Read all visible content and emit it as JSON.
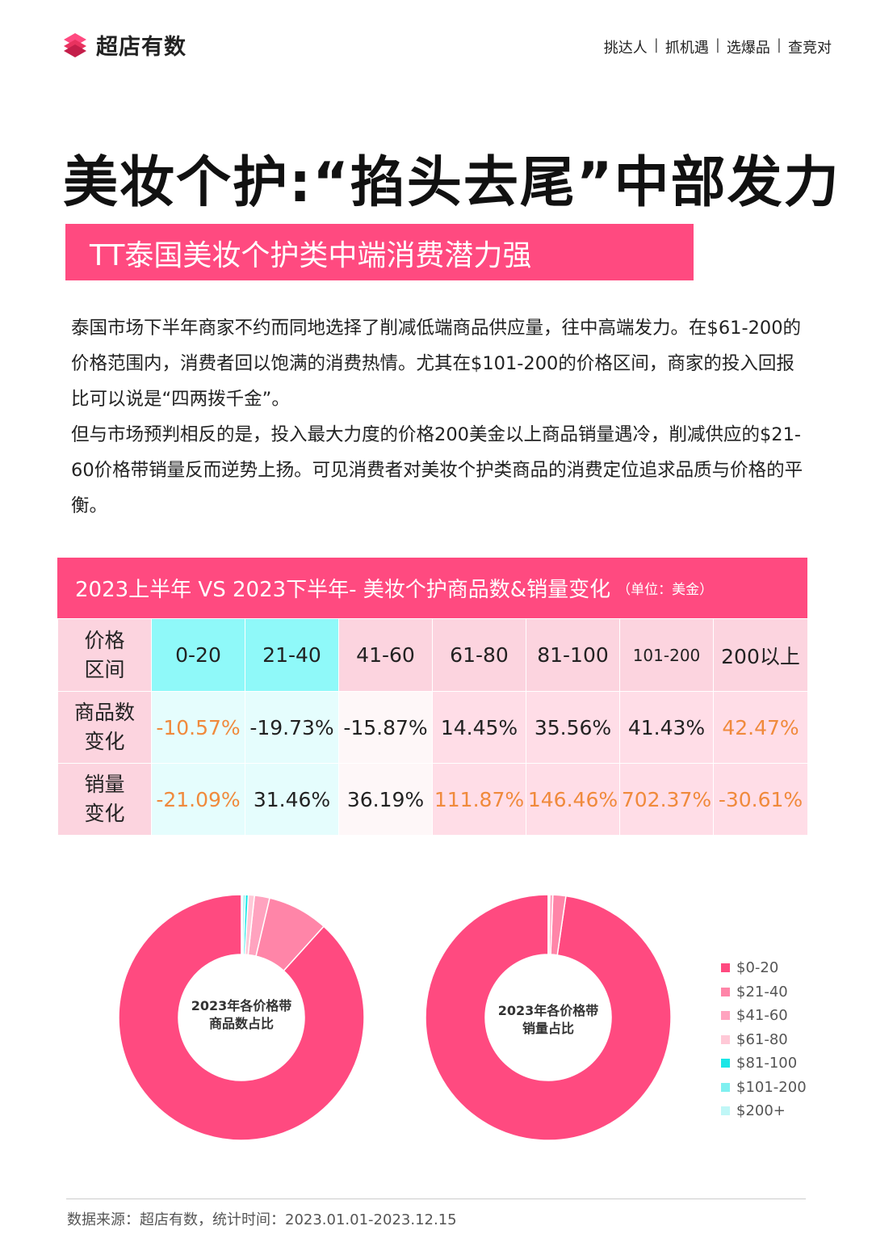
{
  "brand": {
    "name": "超店有数"
  },
  "topnav": [
    "挑达人",
    "抓机遇",
    "选爆品",
    "查竞对"
  ],
  "title": "美妆个护:“掐头去尾”中部发力",
  "subtitle": "TT泰国美妆个护类中端消费潜力强",
  "paragraphs": [
    "泰国市场下半年商家不约而同地选择了削减低端商品供应量，往中高端发力。在$61-200的价格范围内，消费者回以饱满的消费热情。尤其在$101-200的价格区间，商家的投入回报比可以说是“四两拨千金”。",
    "但与市场预判相反的是，投入最大力度的价格200美金以上商品销量遇冷，削减供应的$21-60价格带销量反而逆势上扬。可见消费者对美妆个护类商品的消费定位追求品质与价格的平衡。"
  ],
  "table": {
    "title": "2023上半年 VS 2023下半年- 美妆个护商品数&销量变化",
    "unit": "（单位：美金）",
    "header_label": "价格区间",
    "price_ranges": [
      "0-20",
      "21-40",
      "41-60",
      "61-80",
      "81-100",
      "101-200",
      "200以上"
    ],
    "rows": [
      {
        "label": "商品数变化",
        "values": [
          "-10.57%",
          "-19.73%",
          "-15.87%",
          "14.45%",
          "35.56%",
          "41.43%",
          "42.47%"
        ]
      },
      {
        "label": "销量变化",
        "values": [
          "-21.09%",
          "31.46%",
          "36.19%",
          "111.87%",
          "146.46%",
          "702.37%",
          "-30.61%"
        ]
      }
    ]
  },
  "chart_data": [
    {
      "type": "pie",
      "title": "2023年各价格带商品数占比",
      "categories": [
        "$0-20",
        "$21-40",
        "$41-60",
        "$61-80",
        "$81-100",
        "$101-200",
        "$200+"
      ],
      "values": [
        88.3,
        8.0,
        2.0,
        0.8,
        0.4,
        0.3,
        0.2
      ],
      "colors": [
        "#ff4a80",
        "#ff85a8",
        "#ffa3bf",
        "#ffc9d7",
        "#19e6e6",
        "#7ff0f0",
        "#c0f7f7"
      ]
    },
    {
      "type": "pie",
      "title": "2023年各价格带销量占比",
      "categories": [
        "$0-20",
        "$21-40",
        "$41-60",
        "$61-80",
        "$81-100",
        "$101-200",
        "$200+"
      ],
      "values": [
        97.7,
        1.7,
        0.4,
        0.1,
        0.05,
        0.03,
        0.02
      ],
      "colors": [
        "#ff4a80",
        "#ff85a8",
        "#ffa3bf",
        "#ffc9d7",
        "#19e6e6",
        "#7ff0f0",
        "#c0f7f7"
      ]
    }
  ],
  "legend": [
    {
      "label": "$0-20",
      "color": "#ff4a80"
    },
    {
      "label": "$21-40",
      "color": "#ff85a8"
    },
    {
      "label": "$41-60",
      "color": "#ffa3bf"
    },
    {
      "label": "$61-80",
      "color": "#ffc9d7"
    },
    {
      "label": "$81-100",
      "color": "#19e6e6"
    },
    {
      "label": "$101-200",
      "color": "#7ff0f0"
    },
    {
      "label": "$200+",
      "color": "#c0f7f7"
    }
  ],
  "footer": "数据来源：超店有数，统计时间：2023.01.01-2023.12.15"
}
